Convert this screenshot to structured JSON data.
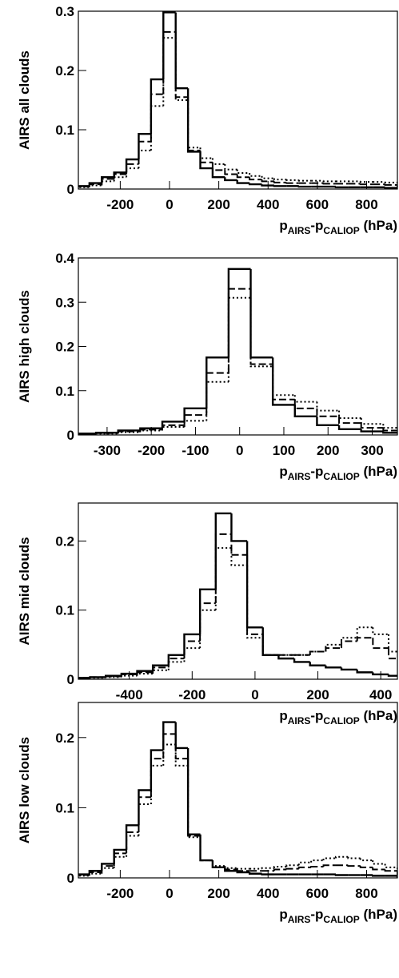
{
  "chart_data": [
    {
      "type": "histogram",
      "ylabel": "AIRS all clouds",
      "xlabel": [
        "p",
        "AIRS",
        "-p",
        "CALIOP",
        " (hPa)"
      ],
      "bins": [
        -375,
        -325,
        -275,
        -225,
        -175,
        -125,
        -75,
        -25,
        25,
        75,
        125,
        175,
        225,
        275,
        325,
        375,
        425,
        475,
        525,
        575,
        625,
        675,
        725,
        775,
        825,
        875,
        925
      ],
      "xlim": [
        -370,
        925
      ],
      "xticks": [
        -200,
        0,
        200,
        400,
        600,
        800
      ],
      "ylim": [
        0,
        0.3
      ],
      "yticks": [
        0,
        0.1,
        0.2,
        0.3
      ],
      "series": [
        {
          "color": "#000000",
          "dash": "solid",
          "values": [
            0.005,
            0.01,
            0.02,
            0.028,
            0.05,
            0.093,
            0.185,
            0.298,
            0.17,
            0.063,
            0.035,
            0.02,
            0.015,
            0.01,
            0.008,
            0.006,
            0.005,
            0.005,
            0.004,
            0.004,
            0.004,
            0.003,
            0.003,
            0.003,
            0.003,
            0.002
          ]
        },
        {
          "color": "#000000",
          "dash": "dashed",
          "values": [
            0.004,
            0.008,
            0.017,
            0.025,
            0.042,
            0.08,
            0.16,
            0.265,
            0.155,
            0.065,
            0.045,
            0.032,
            0.025,
            0.02,
            0.016,
            0.013,
            0.011,
            0.01,
            0.01,
            0.01,
            0.009,
            0.009,
            0.009,
            0.008,
            0.008,
            0.007
          ]
        },
        {
          "color": "#000000",
          "dash": "dotted",
          "values": [
            0.003,
            0.006,
            0.013,
            0.02,
            0.035,
            0.065,
            0.14,
            0.255,
            0.15,
            0.07,
            0.052,
            0.042,
            0.033,
            0.027,
            0.022,
            0.018,
            0.016,
            0.015,
            0.014,
            0.014,
            0.013,
            0.013,
            0.013,
            0.012,
            0.012,
            0.011
          ]
        }
      ]
    },
    {
      "type": "histogram",
      "ylabel": "AIRS high clouds",
      "xlabel": [
        "p",
        "AIRS",
        "-p",
        "CALIOP",
        " (hPa)"
      ],
      "bins": [
        -375,
        -325,
        -275,
        -225,
        -175,
        -125,
        -75,
        -25,
        25,
        75,
        125,
        175,
        225,
        275,
        325,
        375
      ],
      "xlim": [
        -365,
        357
      ],
      "xticks": [
        -300,
        -200,
        -100,
        0,
        100,
        200,
        300
      ],
      "ylim": [
        0,
        0.4
      ],
      "yticks": [
        0,
        0.1,
        0.2,
        0.3,
        0.4
      ],
      "series": [
        {
          "color": "#000000",
          "dash": "solid",
          "values": [
            0.003,
            0.005,
            0.01,
            0.015,
            0.03,
            0.06,
            0.175,
            0.375,
            0.175,
            0.068,
            0.042,
            0.022,
            0.013,
            0.008,
            0.005
          ]
        },
        {
          "color": "#000000",
          "dash": "dashed",
          "values": [
            0.002,
            0.004,
            0.008,
            0.012,
            0.022,
            0.045,
            0.14,
            0.33,
            0.16,
            0.08,
            0.06,
            0.042,
            0.027,
            0.016,
            0.01
          ]
        },
        {
          "color": "#000000",
          "dash": "dotted",
          "values": [
            0.002,
            0.003,
            0.006,
            0.01,
            0.018,
            0.032,
            0.12,
            0.31,
            0.155,
            0.09,
            0.075,
            0.055,
            0.038,
            0.025,
            0.016
          ]
        }
      ]
    },
    {
      "type": "histogram",
      "ylabel": "AIRS mid clouds",
      "xlabel": [
        "p",
        "AIRS",
        "-p",
        "CALIOP",
        " (hPa)"
      ],
      "bins": [
        -575,
        -525,
        -475,
        -425,
        -375,
        -325,
        -275,
        -225,
        -175,
        -125,
        -75,
        -25,
        25,
        75,
        125,
        175,
        225,
        275,
        325,
        375,
        425,
        475
      ],
      "xlim": [
        -562,
        453
      ],
      "xticks": [
        -400,
        -200,
        0,
        200,
        400
      ],
      "ylim": [
        0,
        0.255
      ],
      "yticks": [
        0,
        0.1,
        0.2
      ],
      "series": [
        {
          "color": "#000000",
          "dash": "solid",
          "values": [
            0.002,
            0.003,
            0.005,
            0.008,
            0.012,
            0.02,
            0.035,
            0.065,
            0.13,
            0.24,
            0.2,
            0.075,
            0.035,
            0.03,
            0.025,
            0.02,
            0.017,
            0.014,
            0.01,
            0.007,
            0.005
          ]
        },
        {
          "color": "#000000",
          "dash": "dashed",
          "values": [
            0.002,
            0.003,
            0.004,
            0.007,
            0.01,
            0.017,
            0.03,
            0.055,
            0.11,
            0.21,
            0.18,
            0.065,
            0.035,
            0.035,
            0.035,
            0.04,
            0.045,
            0.055,
            0.06,
            0.045,
            0.03
          ]
        },
        {
          "color": "#000000",
          "dash": "dotted",
          "values": [
            0.001,
            0.002,
            0.003,
            0.005,
            0.008,
            0.013,
            0.025,
            0.045,
            0.1,
            0.19,
            0.165,
            0.06,
            0.035,
            0.035,
            0.035,
            0.04,
            0.05,
            0.06,
            0.075,
            0.065,
            0.04
          ]
        }
      ]
    },
    {
      "type": "histogram",
      "ylabel": "AIRS low clouds",
      "xlabel": [
        "p",
        "AIRS",
        "-p",
        "CALIOP",
        " (hPa)"
      ],
      "bins": [
        -375,
        -325,
        -275,
        -225,
        -175,
        -125,
        -75,
        -25,
        25,
        75,
        125,
        175,
        225,
        275,
        325,
        375,
        425,
        475,
        525,
        575,
        625,
        675,
        725,
        775,
        825,
        875,
        925
      ],
      "xlim": [
        -370,
        925
      ],
      "xticks": [
        -200,
        0,
        200,
        400,
        600,
        800
      ],
      "ylim": [
        0,
        0.25
      ],
      "yticks": [
        0,
        0.1,
        0.2
      ],
      "series": [
        {
          "color": "#000000",
          "dash": "solid",
          "values": [
            0.005,
            0.01,
            0.02,
            0.04,
            0.075,
            0.125,
            0.182,
            0.222,
            0.185,
            0.062,
            0.025,
            0.015,
            0.01,
            0.008,
            0.006,
            0.005,
            0.005,
            0.005,
            0.005,
            0.005,
            0.005,
            0.004,
            0.004,
            0.004,
            0.003,
            0.003
          ]
        },
        {
          "color": "#000000",
          "dash": "dashed",
          "values": [
            0.004,
            0.008,
            0.017,
            0.035,
            0.065,
            0.115,
            0.17,
            0.205,
            0.17,
            0.06,
            0.025,
            0.015,
            0.012,
            0.01,
            0.01,
            0.01,
            0.012,
            0.013,
            0.015,
            0.016,
            0.018,
            0.018,
            0.017,
            0.015,
            0.012,
            0.01
          ]
        },
        {
          "color": "#000000",
          "dash": "dotted",
          "values": [
            0.003,
            0.006,
            0.014,
            0.03,
            0.06,
            0.105,
            0.16,
            0.19,
            0.16,
            0.058,
            0.025,
            0.017,
            0.014,
            0.013,
            0.013,
            0.014,
            0.016,
            0.018,
            0.022,
            0.025,
            0.028,
            0.03,
            0.028,
            0.025,
            0.02,
            0.015
          ]
        }
      ]
    }
  ]
}
